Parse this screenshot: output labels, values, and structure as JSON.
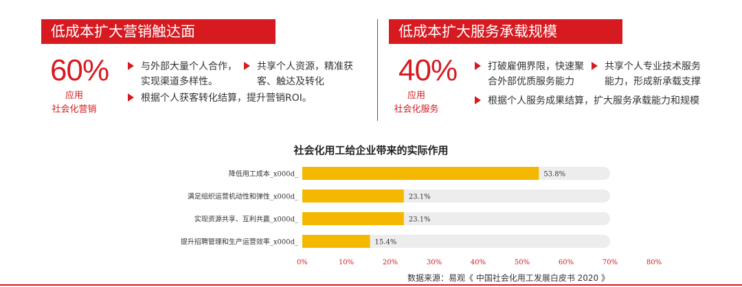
{
  "left_panel": {
    "title": "低成本扩大营销触达面",
    "percent": "60%",
    "caption_line1": "应用",
    "caption_line2": "社会化营销",
    "bullets": [
      {
        "line1": "与外部大量个人合作，",
        "line2": "实现渠道多样性。"
      },
      {
        "line1": "共享个人资源，精准获",
        "line2": "客、触达及转化"
      },
      {
        "line1": "根据个人获客转化结算，提升营销ROI。",
        "line2": ""
      }
    ]
  },
  "right_panel": {
    "title": "低成本扩大服务承载规模",
    "percent": "40%",
    "caption_line1": "应用",
    "caption_line2": "社会化服务",
    "bullets": [
      {
        "line1": "打破雇佣界限，快速聚",
        "line2": "合外部优质服务能力"
      },
      {
        "line1": "共享个人专业技术服务",
        "line2": "能力，形成新承载支撑"
      },
      {
        "line1": "根据个人服务成果结算，扩大服务承载能力和规模",
        "line2": ""
      }
    ]
  },
  "chart_data": {
    "type": "bar",
    "orientation": "horizontal",
    "title": "社会化用工给企业带来的实际作用",
    "categories": [
      "降低用工成本_x000d_",
      "满足组织运营机动性和弹性_x000d_",
      "实现资源共享、互利共赢_x000d_",
      "提升招聘管理和生产运营效率_x000d_"
    ],
    "values": [
      53.8,
      23.1,
      23.1,
      15.4
    ],
    "value_labels": [
      "53.8%",
      "23.1%",
      "23.1%",
      "15.4%"
    ],
    "xlim": [
      0,
      80
    ],
    "ticks": [
      "0%",
      "10%",
      "20%",
      "30%",
      "40%",
      "50%",
      "60%",
      "70%",
      "80%"
    ],
    "track_max": 70,
    "bar_color": "#f5b800",
    "track_color": "#ededed",
    "tick_color": "#d71920"
  },
  "source": "数据来源：易观《 中国社会化用工发展白皮书 2020 》",
  "colors": {
    "accent": "#d71920"
  }
}
